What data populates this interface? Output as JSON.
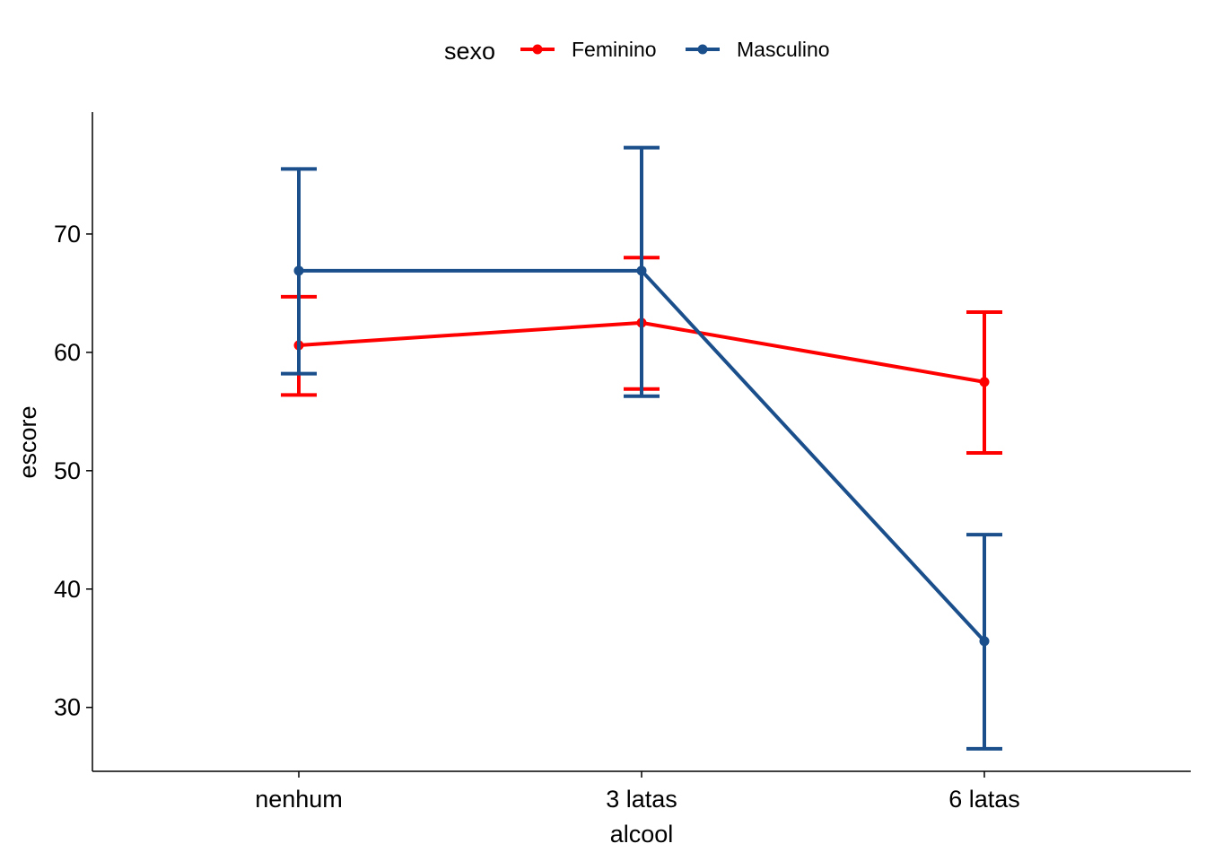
{
  "chart_data": {
    "type": "line",
    "xlabel": "alcool",
    "ylabel": "escore",
    "categories": [
      "nenhum",
      "3 latas",
      "6 latas"
    ],
    "ylim": [
      24.6,
      80.3
    ],
    "yticks": [
      30,
      40,
      50,
      60,
      70
    ],
    "grid": false,
    "legend": {
      "title": "sexo",
      "position": "top"
    },
    "series": [
      {
        "name": "Feminino",
        "color": "#ff0000",
        "values": [
          60.6,
          62.5,
          57.5
        ],
        "lower": [
          56.4,
          56.9,
          51.5
        ],
        "upper": [
          64.7,
          68.0,
          63.4
        ]
      },
      {
        "name": "Masculino",
        "color": "#1a4f8c",
        "values": [
          66.9,
          66.9,
          35.6
        ],
        "lower": [
          58.2,
          56.3,
          26.5
        ],
        "upper": [
          75.5,
          77.3,
          44.6
        ]
      }
    ]
  }
}
